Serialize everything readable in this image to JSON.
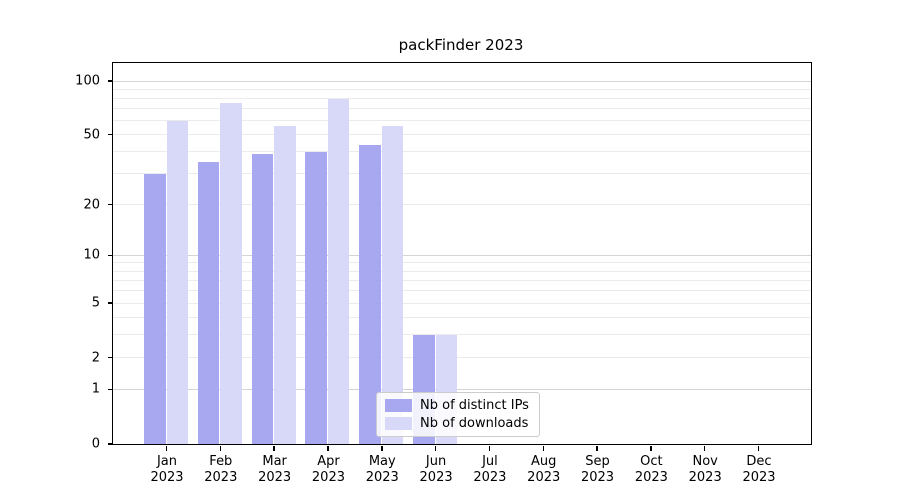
{
  "chart_data": {
    "type": "bar",
    "title": "packFinder 2023",
    "yscale": "log1p",
    "categories": [
      "Jan",
      "Feb",
      "Mar",
      "Apr",
      "May",
      "Jun",
      "Jul",
      "Aug",
      "Sep",
      "Oct",
      "Nov",
      "Dec"
    ],
    "year_label": "2023",
    "series": [
      {
        "name": "Nb of distinct IPs",
        "color": "#a8a8f0",
        "values": [
          30,
          35,
          39,
          40,
          44,
          3,
          0,
          0,
          0,
          0,
          0,
          0
        ]
      },
      {
        "name": "Nb of downloads",
        "color": "#d8d8f8",
        "values": [
          60,
          75,
          56,
          79,
          56,
          3,
          0,
          0,
          0,
          0,
          0,
          0
        ]
      }
    ],
    "xlabel": "",
    "ylabel": "",
    "ytick_values": [
      100,
      50,
      20,
      10,
      5,
      2,
      1,
      0
    ],
    "ytick_labels": [
      "100",
      "50",
      "20",
      "10",
      "5",
      "2",
      "1",
      "0"
    ],
    "ylim": [
      0,
      126
    ],
    "grid": true,
    "grid_major_values": [
      1,
      10,
      100
    ],
    "grid_minor_values": [
      2,
      3,
      4,
      5,
      6,
      7,
      8,
      9,
      20,
      30,
      40,
      50,
      60,
      70,
      80,
      90
    ],
    "legend_position": "lower center",
    "colors": {
      "background": "#ffffff",
      "axis": "#000000",
      "grid_major": "#d4d4d4",
      "grid_minor": "#ebebeb",
      "legend_border": "#cccccc"
    }
  }
}
